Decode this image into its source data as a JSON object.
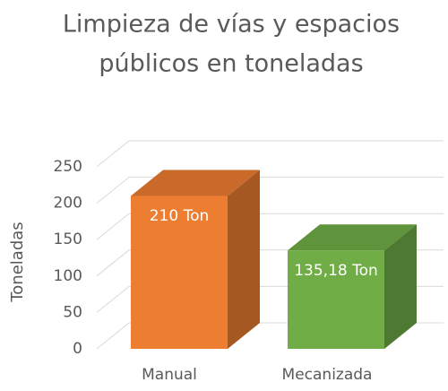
{
  "chart_data": {
    "type": "bar3d",
    "title_lines": [
      "Limpieza de vías y espacios",
      "públicos en toneladas"
    ],
    "y_label": "Toneladas",
    "categories": [
      "Manual",
      "Mecanizada"
    ],
    "values": [
      210,
      135.18
    ],
    "value_labels": [
      "210 Ton",
      "135,18 Ton"
    ],
    "colors": [
      "#ed7d31",
      "#70ad47"
    ],
    "ylim": [
      0,
      250
    ],
    "yticks": [
      0,
      50,
      100,
      150,
      200,
      250
    ],
    "grid": true
  }
}
